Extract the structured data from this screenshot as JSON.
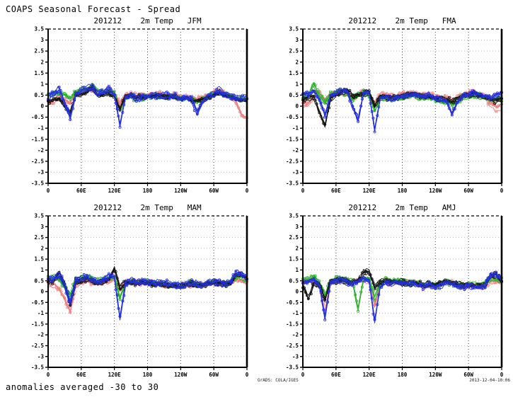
{
  "header": {
    "title": "COAPS Seasonal Forecast - Spread"
  },
  "footer": {
    "note": "anomalies averaged -30 to 30",
    "grads_stamp": "GrADS: COLA/IGES",
    "timestamp": "2013-12-04-10:06"
  },
  "chart_data": {
    "type": "line",
    "description": "Ensemble spread of 2m temperature anomaly forecasts initialized 201212, plotted against longitude (anomalies averaged -30 to 30 latitude), four target seasons; ensemble members drawn in red, green, black and blue",
    "x_axis": {
      "range_deg": [
        0,
        360
      ],
      "ticks": [
        {
          "deg": 0,
          "label": "0"
        },
        {
          "deg": 60,
          "label": "60E"
        },
        {
          "deg": 120,
          "label": "120E"
        },
        {
          "deg": 180,
          "label": "180"
        },
        {
          "deg": 240,
          "label": "120W"
        },
        {
          "deg": 300,
          "label": "60W"
        },
        {
          "deg": 360,
          "label": "0"
        }
      ]
    },
    "y_axis": {
      "lim": [
        -3.5,
        3.5
      ],
      "tick_step": 0.5,
      "tick_labels": [
        "3.5",
        "3",
        "2.5",
        "2",
        "1.5",
        "1",
        "0.5",
        "0",
        "-0.5",
        "-1",
        "-1.5",
        "-2",
        "-2.5",
        "-3",
        "-3.5"
      ]
    },
    "grid": true,
    "colors": {
      "red": "#ee8080",
      "green": "#2db32d",
      "black": "#151515",
      "blue": "#2430dd"
    },
    "members_per_series": 5,
    "sample_step_deg": 10,
    "panels": [
      {
        "id": "jfm",
        "title": "201212    2m Temp   JFM",
        "series": [
          {
            "color": "red",
            "values": [
              0.1,
              0.2,
              0.4,
              0.3,
              0.1,
              0.55,
              0.6,
              0.7,
              0.75,
              0.55,
              0.6,
              0.75,
              0.5,
              0.1,
              0.5,
              0.55,
              0.45,
              0.5,
              0.5,
              0.52,
              0.55,
              0.5,
              0.48,
              0.5,
              0.42,
              0.45,
              0.35,
              0.3,
              0.4,
              0.5,
              0.6,
              0.7,
              0.55,
              0.45,
              0.2,
              -0.4,
              -0.6
            ]
          },
          {
            "color": "green",
            "values": [
              0.45,
              0.5,
              0.55,
              0.45,
              0.3,
              0.6,
              0.7,
              0.75,
              0.9,
              0.65,
              0.6,
              0.65,
              0.55,
              -0.2,
              0.35,
              0.4,
              0.3,
              0.35,
              0.4,
              0.42,
              0.45,
              0.4,
              0.38,
              0.4,
              0.3,
              0.32,
              0.25,
              0.15,
              0.28,
              0.38,
              0.48,
              0.6,
              0.48,
              0.4,
              0.35,
              0.32,
              0.3
            ]
          },
          {
            "color": "black",
            "values": [
              0.25,
              0.3,
              0.35,
              0.05,
              -0.25,
              0.5,
              0.55,
              0.65,
              0.85,
              0.5,
              0.55,
              0.6,
              0.45,
              -0.1,
              0.45,
              0.5,
              0.4,
              0.42,
              0.45,
              0.48,
              0.5,
              0.45,
              0.42,
              0.45,
              0.35,
              0.38,
              0.3,
              0.2,
              0.32,
              0.42,
              0.5,
              0.62,
              0.5,
              0.42,
              0.35,
              0.3,
              0.28
            ]
          },
          {
            "color": "blue",
            "values": [
              0.45,
              0.55,
              0.8,
              0.2,
              -0.5,
              0.6,
              0.75,
              0.8,
              0.85,
              0.6,
              0.65,
              0.8,
              0.55,
              -0.9,
              0.4,
              0.5,
              0.35,
              0.4,
              0.45,
              0.5,
              0.5,
              0.48,
              0.45,
              0.48,
              0.35,
              0.4,
              0.3,
              -0.3,
              0.2,
              0.45,
              0.55,
              0.75,
              0.55,
              0.45,
              0.4,
              0.35,
              0.45
            ]
          }
        ]
      },
      {
        "id": "fma",
        "title": "201212    2m Temp   FMA",
        "series": [
          {
            "color": "red",
            "values": [
              0.05,
              0.1,
              0.45,
              0.6,
              0.2,
              0.5,
              0.55,
              0.65,
              0.6,
              0.4,
              0.5,
              0.6,
              0.5,
              0.1,
              0.45,
              0.5,
              0.4,
              0.45,
              0.5,
              0.55,
              0.6,
              0.5,
              0.45,
              0.5,
              0.4,
              0.35,
              0.3,
              0.25,
              0.35,
              0.5,
              0.55,
              0.6,
              0.5,
              0.4,
              0.1,
              -0.1,
              0.0
            ]
          },
          {
            "color": "green",
            "values": [
              0.4,
              0.5,
              1.0,
              0.5,
              0.2,
              0.55,
              0.65,
              0.7,
              0.6,
              0.3,
              0.55,
              0.6,
              0.55,
              -0.2,
              0.35,
              0.4,
              0.3,
              0.35,
              0.4,
              0.45,
              0.5,
              0.4,
              0.35,
              0.4,
              0.3,
              0.25,
              0.2,
              0.1,
              0.25,
              0.4,
              0.45,
              0.5,
              0.45,
              0.38,
              0.32,
              0.3,
              0.32
            ]
          },
          {
            "color": "black",
            "values": [
              0.3,
              0.35,
              0.4,
              -0.3,
              -0.9,
              0.3,
              0.5,
              0.6,
              0.7,
              0.45,
              0.5,
              0.55,
              0.6,
              0.0,
              0.4,
              0.45,
              0.35,
              0.4,
              0.45,
              0.5,
              0.55,
              0.45,
              0.4,
              0.45,
              0.35,
              0.3,
              0.25,
              0.2,
              0.3,
              0.45,
              0.5,
              0.55,
              0.45,
              0.4,
              0.3,
              0.28,
              0.3
            ]
          },
          {
            "color": "blue",
            "values": [
              0.5,
              0.6,
              0.7,
              0.3,
              -0.4,
              0.5,
              0.6,
              0.7,
              0.65,
              0.0,
              -0.6,
              0.6,
              0.6,
              -1.1,
              0.35,
              0.45,
              0.3,
              0.4,
              0.45,
              0.5,
              0.55,
              0.5,
              0.45,
              0.5,
              0.38,
              0.3,
              0.25,
              -0.35,
              0.2,
              0.5,
              0.55,
              0.65,
              0.5,
              0.45,
              0.4,
              0.5,
              0.6
            ]
          }
        ]
      },
      {
        "id": "mam",
        "title": "201212    2m Temp   MAM",
        "series": [
          {
            "color": "red",
            "values": [
              0.45,
              0.3,
              0.1,
              -0.35,
              -1.0,
              0.3,
              0.45,
              0.5,
              0.45,
              0.35,
              0.45,
              0.5,
              0.55,
              0.1,
              0.4,
              0.45,
              0.4,
              0.42,
              0.4,
              0.38,
              0.36,
              0.33,
              0.3,
              0.3,
              0.22,
              0.28,
              0.35,
              0.3,
              0.28,
              0.38,
              0.42,
              0.38,
              0.33,
              0.38,
              0.55,
              0.5,
              0.45
            ]
          },
          {
            "color": "green",
            "values": [
              0.6,
              0.7,
              0.55,
              0.2,
              -0.2,
              0.55,
              0.6,
              0.65,
              0.55,
              0.45,
              0.55,
              0.65,
              0.6,
              -0.3,
              0.4,
              0.45,
              0.4,
              0.42,
              0.4,
              0.38,
              0.35,
              0.32,
              0.3,
              0.3,
              0.22,
              0.28,
              0.38,
              0.32,
              0.3,
              0.4,
              0.45,
              0.4,
              0.35,
              0.42,
              0.7,
              0.65,
              0.55
            ]
          },
          {
            "color": "black",
            "values": [
              0.5,
              0.55,
              0.9,
              0.4,
              -0.6,
              0.5,
              0.55,
              0.6,
              0.5,
              0.4,
              0.5,
              0.6,
              1.1,
              0.2,
              0.45,
              0.5,
              0.42,
              0.45,
              0.42,
              0.4,
              0.38,
              0.35,
              0.3,
              0.32,
              0.25,
              0.3,
              0.4,
              0.35,
              0.3,
              0.4,
              0.45,
              0.4,
              0.35,
              0.4,
              0.8,
              0.85,
              0.6
            ]
          },
          {
            "color": "blue",
            "values": [
              0.55,
              0.6,
              0.75,
              0.3,
              -0.5,
              0.55,
              0.6,
              0.7,
              0.55,
              0.45,
              0.55,
              0.7,
              0.65,
              -1.2,
              0.35,
              0.5,
              0.42,
              0.45,
              0.42,
              0.4,
              0.4,
              0.36,
              0.32,
              0.33,
              0.25,
              0.3,
              0.4,
              0.35,
              0.3,
              0.42,
              0.48,
              0.42,
              0.36,
              0.45,
              0.85,
              0.8,
              0.6
            ]
          }
        ]
      },
      {
        "id": "amj",
        "title": "201212    2m Temp   AMJ",
        "series": [
          {
            "color": "red",
            "values": [
              0.4,
              0.45,
              0.5,
              0.2,
              -1.0,
              0.4,
              0.5,
              0.55,
              0.5,
              0.4,
              0.45,
              0.55,
              0.5,
              -0.7,
              0.3,
              0.45,
              0.4,
              0.45,
              0.42,
              0.4,
              0.38,
              0.3,
              0.25,
              0.3,
              0.2,
              0.3,
              0.42,
              0.38,
              0.25,
              0.2,
              0.3,
              0.25,
              0.2,
              0.28,
              0.5,
              0.45,
              0.4
            ]
          },
          {
            "color": "green",
            "values": [
              0.5,
              0.55,
              0.7,
              0.4,
              -0.2,
              0.5,
              0.55,
              0.6,
              0.5,
              0.45,
              -0.8,
              0.55,
              0.55,
              -0.3,
              0.35,
              0.5,
              0.45,
              0.5,
              0.45,
              0.42,
              0.4,
              0.35,
              0.3,
              0.35,
              0.25,
              0.35,
              0.45,
              0.4,
              0.3,
              0.25,
              0.35,
              0.3,
              0.25,
              0.35,
              0.6,
              0.55,
              0.5
            ]
          },
          {
            "color": "black",
            "values": [
              0.3,
              -0.3,
              0.4,
              0.35,
              -0.4,
              0.45,
              0.5,
              0.55,
              0.45,
              0.4,
              0.5,
              0.9,
              0.95,
              0.2,
              0.45,
              0.5,
              0.45,
              0.48,
              0.45,
              0.42,
              0.4,
              0.35,
              0.3,
              0.35,
              0.3,
              0.4,
              0.5,
              0.45,
              0.35,
              0.3,
              0.35,
              0.3,
              0.25,
              0.3,
              0.75,
              0.8,
              0.5
            ]
          },
          {
            "color": "blue",
            "values": [
              0.45,
              0.5,
              0.6,
              0.3,
              -1.2,
              0.45,
              0.55,
              0.6,
              0.5,
              0.4,
              0.5,
              0.6,
              0.55,
              -1.3,
              0.25,
              0.45,
              0.4,
              0.45,
              0.42,
              0.4,
              0.38,
              0.32,
              0.28,
              0.32,
              0.22,
              0.32,
              0.45,
              0.4,
              0.28,
              0.22,
              0.32,
              0.28,
              0.22,
              0.32,
              0.8,
              0.85,
              0.55
            ]
          }
        ]
      }
    ]
  }
}
